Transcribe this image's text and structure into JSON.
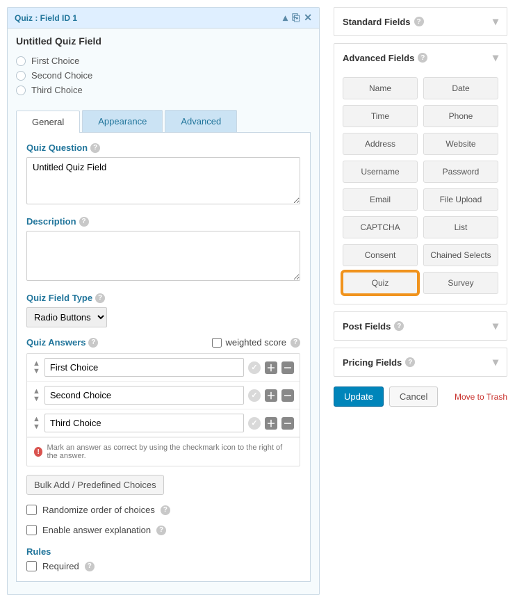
{
  "field_editor": {
    "header_title": "Quiz : Field ID 1",
    "field_title": "Untitled Quiz Field",
    "preview_choices": [
      "First Choice",
      "Second Choice",
      "Third Choice"
    ],
    "tabs": {
      "general": "General",
      "appearance": "Appearance",
      "advanced": "Advanced"
    },
    "labels": {
      "quiz_question": "Quiz Question",
      "description": "Description",
      "quiz_field_type": "Quiz Field Type",
      "quiz_answers": "Quiz Answers",
      "weighted_score": "weighted score",
      "rules": "Rules"
    },
    "question_value": "Untitled Quiz Field",
    "description_value": "",
    "field_type_selected": "Radio Buttons",
    "answers": [
      "First Choice",
      "Second Choice",
      "Third Choice"
    ],
    "answer_hint": "Mark an answer as correct by using the checkmark icon to the right of the answer.",
    "bulk_add": "Bulk Add / Predefined Choices",
    "randomize": "Randomize order of choices",
    "enable_explanation": "Enable answer explanation",
    "required": "Required"
  },
  "sidebar": {
    "standard_fields": "Standard Fields",
    "advanced_fields": "Advanced Fields",
    "post_fields": "Post Fields",
    "pricing_fields": "Pricing Fields",
    "advanced_items": [
      "Name",
      "Date",
      "Time",
      "Phone",
      "Address",
      "Website",
      "Username",
      "Password",
      "Email",
      "File Upload",
      "CAPTCHA",
      "List",
      "Consent",
      "Chained Selects",
      "Quiz",
      "Survey"
    ],
    "highlighted_index": 14
  },
  "actions": {
    "update": "Update",
    "cancel": "Cancel",
    "trash": "Move to Trash"
  }
}
